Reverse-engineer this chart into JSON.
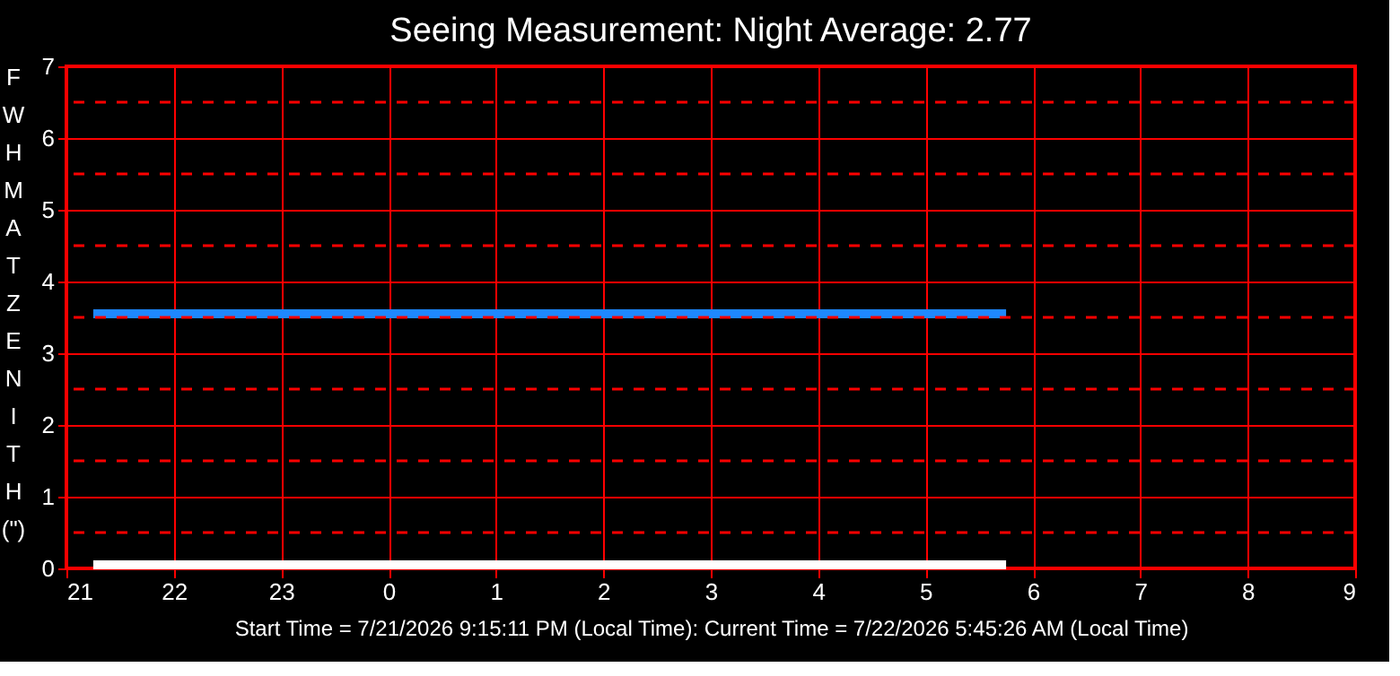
{
  "chart_data": {
    "type": "line",
    "title": "Seeing Measurement: Night Average: 2.77",
    "ylabel": "FWHM AT ZENITH (\")",
    "annotations": [
      "Start Time = 7/21/2026 9:15:11 PM (Local Time): Current Time = 7/22/2026 5:45:26 AM (Local Time)"
    ],
    "series": [
      {
        "color": "#1e88ff",
        "x": [
          "2026-07-21T21:15",
          "2026-07-22T05:45"
        ],
        "values": [
          3.55,
          3.55
        ]
      },
      {
        "color": "#ffffff",
        "x": [
          "2026-07-21T21:15",
          "2026-07-22T05:45"
        ],
        "values": [
          0.05,
          0.05
        ]
      }
    ],
    "xlim": [
      "2026-07-21T21:00",
      "2026-07-22T09:00"
    ],
    "xticks": [
      {
        "value": "2026-07-21T21:00",
        "label": "21"
      },
      {
        "value": "2026-07-21T22:00",
        "label": "22"
      },
      {
        "value": "2026-07-21T23:00",
        "label": "23"
      },
      {
        "value": "2026-07-22T00:00",
        "label": "0"
      },
      {
        "value": "2026-07-22T01:00",
        "label": "1"
      },
      {
        "value": "2026-07-22T02:00",
        "label": "2"
      },
      {
        "value": "2026-07-22T03:00",
        "label": "3"
      },
      {
        "value": "2026-07-22T04:00",
        "label": "4"
      },
      {
        "value": "2026-07-22T05:00",
        "label": "5"
      },
      {
        "value": "2026-07-22T06:00",
        "label": "6"
      },
      {
        "value": "2026-07-22T07:00",
        "label": "7"
      },
      {
        "value": "2026-07-22T08:00",
        "label": "8"
      },
      {
        "value": "2026-07-22T09:00",
        "label": "9"
      }
    ],
    "ylim": [
      0,
      7
    ],
    "yticks": [
      0,
      1,
      2,
      3,
      4,
      5,
      6,
      7
    ],
    "grid": true,
    "ref_lines": [
      {
        "axis": "y",
        "value": 0.5,
        "color": "#ff0000",
        "line_style": "dashed"
      },
      {
        "axis": "y",
        "value": 1.5,
        "color": "#ff0000",
        "line_style": "dashed"
      },
      {
        "axis": "y",
        "value": 2.5,
        "color": "#ff0000",
        "line_style": "dashed"
      },
      {
        "axis": "y",
        "value": 3.5,
        "color": "#ff0000",
        "line_style": "dashed"
      },
      {
        "axis": "y",
        "value": 4.5,
        "color": "#ff0000",
        "line_style": "dashed"
      },
      {
        "axis": "y",
        "value": 5.5,
        "color": "#ff0000",
        "line_style": "dashed"
      },
      {
        "axis": "y",
        "value": 6.5,
        "color": "#ff0000",
        "line_style": "dashed"
      }
    ],
    "legend": false,
    "marker": "none",
    "line_style": "solid"
  }
}
